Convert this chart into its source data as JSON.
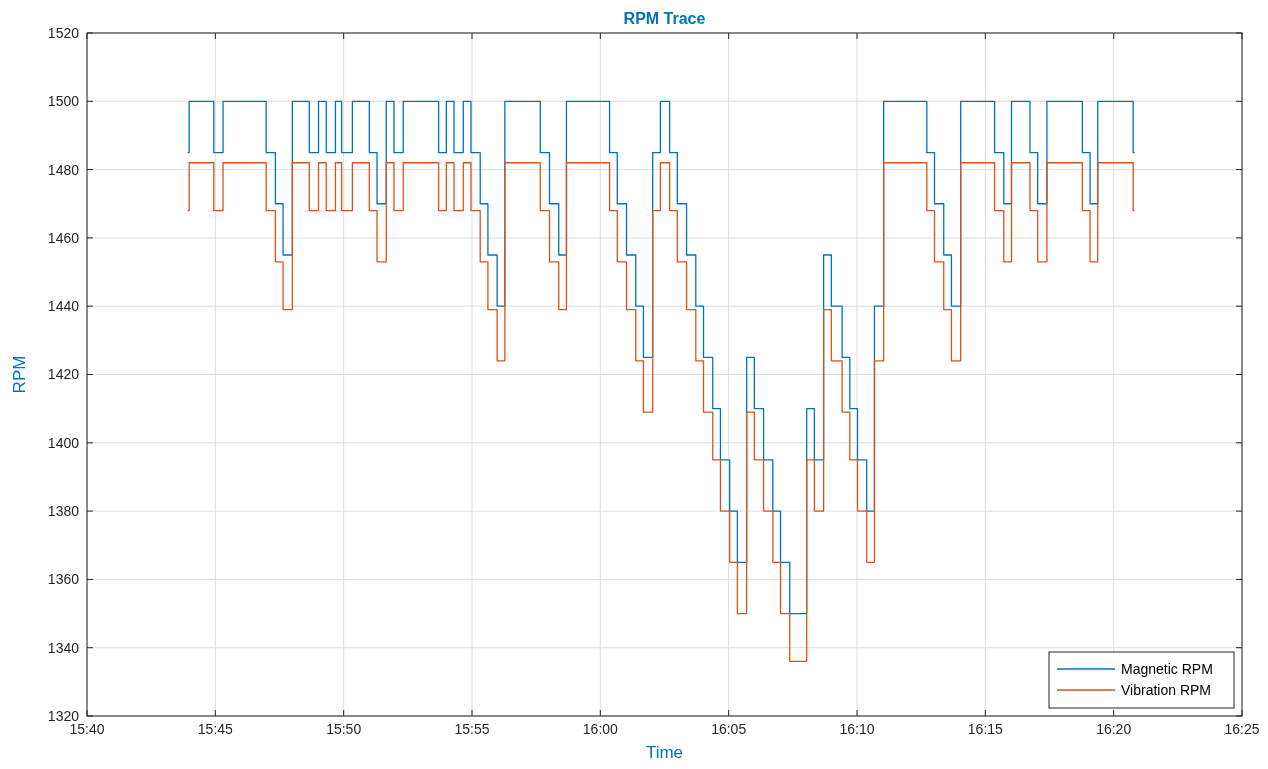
{
  "chart_data": {
    "type": "step",
    "title": "RPM Trace",
    "xlabel": "Time",
    "ylabel": "RPM",
    "x": [
      15.732,
      15.733,
      15.749,
      15.755,
      15.783,
      15.789,
      15.794,
      15.8,
      15.811,
      15.817,
      15.822,
      15.828,
      15.832,
      15.839,
      15.85,
      15.855,
      15.861,
      15.866,
      15.872,
      15.895,
      15.9,
      15.905,
      15.911,
      15.916,
      15.922,
      15.927,
      15.933,
      15.938,
      15.961,
      15.967,
      15.973,
      15.978,
      16.006,
      16.011,
      16.017,
      16.023,
      16.028,
      16.034,
      16.039,
      16.045,
      16.05,
      16.056,
      16.062,
      16.067,
      16.073,
      16.078,
      16.084,
      16.089,
      16.095,
      16.1,
      16.106,
      16.112,
      16.117,
      16.123,
      16.134,
      16.139,
      16.145,
      16.15,
      16.157,
      16.162,
      16.167,
      16.173,
      16.178,
      16.184,
      16.212,
      16.217,
      16.223,
      16.228,
      16.234,
      16.256,
      16.262,
      16.267,
      16.279,
      16.284,
      16.29,
      16.313,
      16.318,
      16.323,
      16.346,
      16.347
    ],
    "series": [
      {
        "name": "Magnetic RPM",
        "color": "#0072bd",
        "values": [
          1485,
          1500,
          1485,
          1500,
          1485,
          1470,
          1455,
          1500,
          1485,
          1500,
          1485,
          1500,
          1485,
          1500,
          1485,
          1470,
          1500,
          1485,
          1500,
          1485,
          1500,
          1485,
          1500,
          1485,
          1470,
          1455,
          1440,
          1500,
          1485,
          1470,
          1455,
          1500,
          1485,
          1470,
          1455,
          1440,
          1425,
          1485,
          1500,
          1485,
          1470,
          1455,
          1440,
          1425,
          1410,
          1395,
          1380,
          1365,
          1425,
          1410,
          1395,
          1380,
          1365,
          1350,
          1410,
          1395,
          1455,
          1440,
          1425,
          1410,
          1395,
          1380,
          1440,
          1500,
          1485,
          1470,
          1455,
          1440,
          1500,
          1485,
          1470,
          1500,
          1485,
          1470,
          1500,
          1485,
          1470,
          1500,
          1485,
          1485
        ]
      },
      {
        "name": "Vibration RPM",
        "color": "#d95319",
        "values": [
          1468,
          1482,
          1468,
          1482,
          1468,
          1453,
          1439,
          1482,
          1468,
          1482,
          1468,
          1482,
          1468,
          1482,
          1468,
          1453,
          1482,
          1468,
          1482,
          1468,
          1482,
          1468,
          1482,
          1468,
          1453,
          1439,
          1424,
          1482,
          1468,
          1453,
          1439,
          1482,
          1468,
          1453,
          1439,
          1424,
          1409,
          1468,
          1482,
          1468,
          1453,
          1439,
          1424,
          1409,
          1395,
          1380,
          1365,
          1350,
          1409,
          1395,
          1380,
          1365,
          1350,
          1336,
          1395,
          1380,
          1439,
          1424,
          1409,
          1395,
          1380,
          1365,
          1424,
          1482,
          1468,
          1453,
          1439,
          1424,
          1482,
          1468,
          1453,
          1482,
          1468,
          1453,
          1482,
          1468,
          1453,
          1482,
          1468,
          1468
        ]
      }
    ],
    "xlim": [
      15.66667,
      16.41667
    ],
    "xticks": [
      {
        "value": 15.66667,
        "label": "15:40"
      },
      {
        "value": 15.75,
        "label": "15:45"
      },
      {
        "value": 15.83333,
        "label": "15:50"
      },
      {
        "value": 15.91667,
        "label": "15:55"
      },
      {
        "value": 16,
        "label": "16:00"
      },
      {
        "value": 16.08333,
        "label": "16:05"
      },
      {
        "value": 16.16667,
        "label": "16:10"
      },
      {
        "value": 16.25,
        "label": "16:15"
      },
      {
        "value": 16.33333,
        "label": "16:20"
      },
      {
        "value": 16.41667,
        "label": "16:25"
      }
    ],
    "ylim": [
      1320,
      1520
    ],
    "yticks": [
      1320,
      1340,
      1360,
      1380,
      1400,
      1420,
      1440,
      1460,
      1480,
      1500,
      1520
    ],
    "grid": true,
    "legend": "bottom right"
  }
}
